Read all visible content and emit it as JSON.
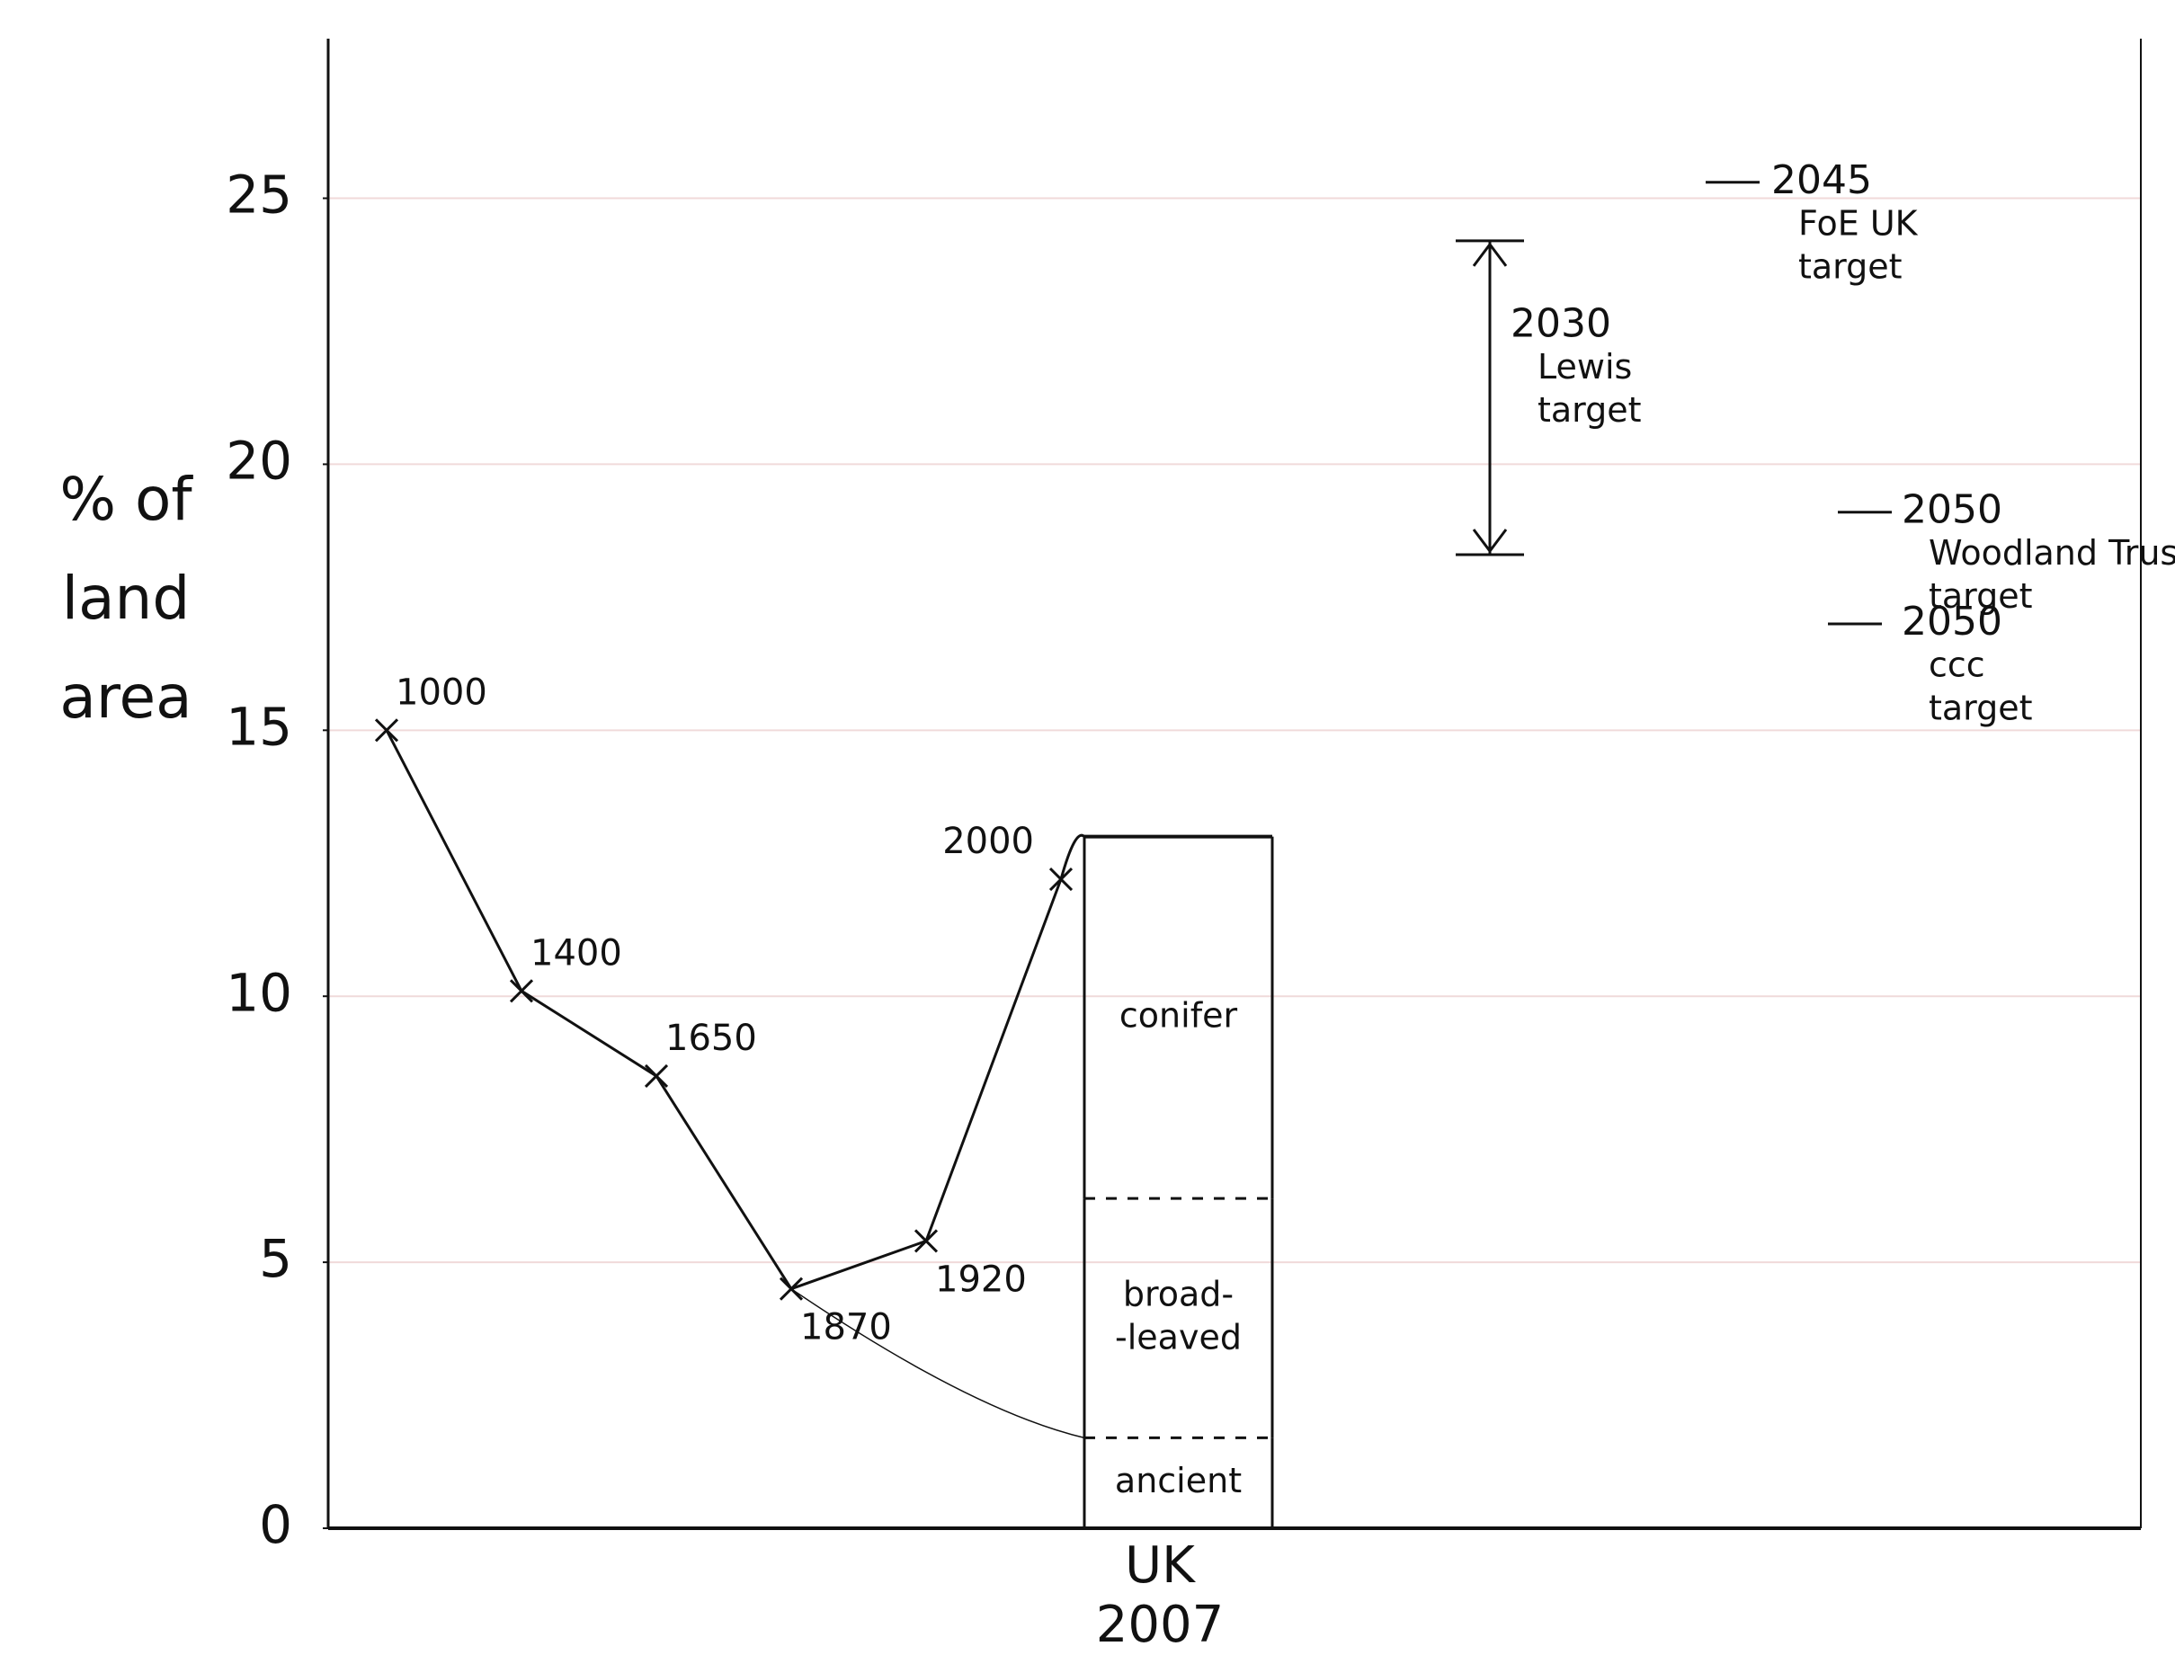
{
  "chart_data": {
    "type": "line_bar",
    "y_label": [
      "% of",
      "land",
      "area"
    ],
    "ylim": [
      0,
      28
    ],
    "yticks": [
      0,
      5,
      10,
      15,
      20,
      25
    ],
    "grid": true,
    "line": {
      "categories": [
        "1000",
        "1400",
        "1650",
        "1870",
        "1920",
        "2000"
      ],
      "values": [
        15,
        10.1,
        8.5,
        4.5,
        5.4,
        12.2
      ],
      "color": "#111111"
    },
    "bar": {
      "categories": [
        "UK 2007"
      ],
      "series": [
        {
          "name": [
            "ancient"
          ],
          "values": [
            1.7
          ]
        },
        {
          "name": [
            "broad-",
            "-leaved"
          ],
          "values": [
            4.5
          ]
        },
        {
          "name": [
            "conifer"
          ],
          "values": [
            6.8
          ]
        }
      ],
      "color": "#111111"
    },
    "targets": [
      {
        "lines": [
          "2030",
          "Lewis",
          "target"
        ],
        "low": 18.3,
        "high": 24.2
      },
      {
        "lines": [
          "2045",
          "FoE UK",
          "target"
        ],
        "value": 25.3
      },
      {
        "lines": [
          "2050",
          "Woodland Trust",
          "target"
        ],
        "value": 19.1
      },
      {
        "lines": [
          "2050",
          "ccc",
          "target"
        ],
        "value": 17.0
      }
    ]
  }
}
